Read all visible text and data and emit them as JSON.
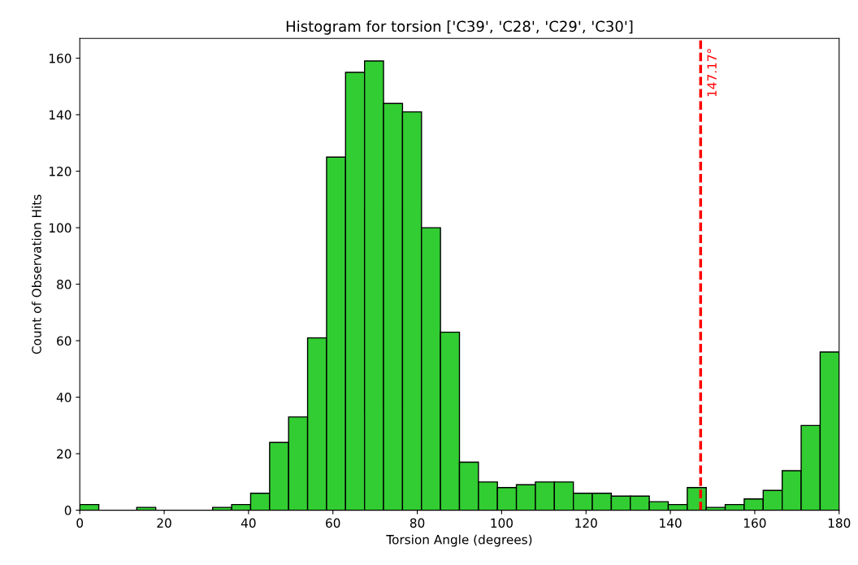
{
  "chart_data": {
    "type": "histogram",
    "title": "Histogram for torsion ['C39', 'C28', 'C29', 'C30']",
    "xlabel": "Torsion Angle (degrees)",
    "ylabel": "Count of Observation Hits",
    "bins": [
      0,
      4.5,
      9,
      13.5,
      18,
      22.5,
      27,
      31.5,
      36,
      40.5,
      45,
      49.5,
      54,
      58.5,
      63,
      67.5,
      72,
      76.5,
      81,
      85.5,
      90,
      94.5,
      99,
      103.5,
      108,
      112.5,
      117,
      121.5,
      126,
      130.5,
      135,
      139.5,
      144,
      148.5,
      153,
      157.5,
      162,
      166.5,
      171,
      175.5,
      180
    ],
    "values": [
      2,
      0,
      0,
      1,
      0,
      0,
      0,
      1,
      2,
      6,
      24,
      33,
      61,
      125,
      155,
      159,
      144,
      141,
      100,
      63,
      17,
      10,
      8,
      9,
      10,
      10,
      6,
      6,
      5,
      5,
      3,
      2,
      8,
      1,
      2,
      4,
      7,
      14,
      30,
      56
    ],
    "color": "#32cd32",
    "xlim": [
      0,
      180
    ],
    "xticks": [
      0,
      20,
      40,
      60,
      80,
      100,
      120,
      140,
      160,
      180
    ],
    "ylim": [
      0,
      167
    ],
    "yticks": [
      0,
      20,
      40,
      60,
      80,
      100,
      120,
      140,
      160
    ],
    "ref_lines": [
      {
        "axis": "x",
        "value": 147.17,
        "label": "147.17°",
        "color": "#ff0000",
        "line_style": "dashed"
      }
    ],
    "grid": false
  }
}
